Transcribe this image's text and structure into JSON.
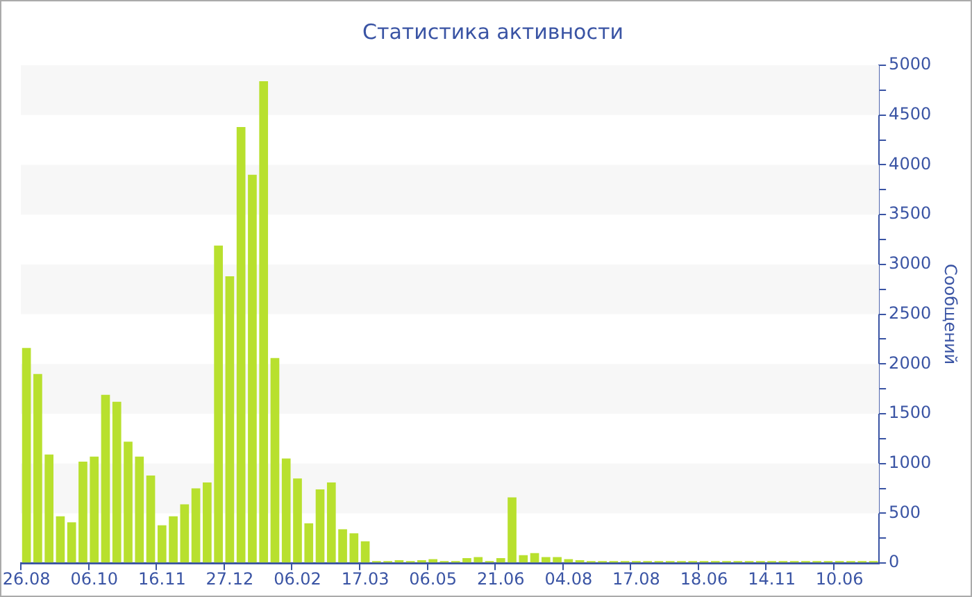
{
  "chart_data": {
    "type": "bar",
    "title": "Статистика активности",
    "ylabel": "Сообщений",
    "categories": [
      "26.08",
      null,
      null,
      null,
      null,
      null,
      "06.10",
      null,
      null,
      null,
      null,
      null,
      "16.11",
      null,
      null,
      null,
      null,
      null,
      "27.12",
      null,
      null,
      null,
      null,
      null,
      "06.02",
      null,
      null,
      null,
      null,
      null,
      "17.03",
      null,
      null,
      null,
      null,
      null,
      "06.05",
      null,
      null,
      null,
      null,
      null,
      "21.06",
      null,
      null,
      null,
      null,
      null,
      "04.08",
      null,
      null,
      null,
      null,
      null,
      "17.08",
      null,
      null,
      null,
      null,
      null,
      "18.06",
      null,
      null,
      null,
      null,
      null,
      "14.11",
      null,
      null,
      null,
      null,
      null,
      "10.06",
      null,
      null,
      null
    ],
    "series": [
      {
        "color": "#b8e02e",
        "values": [
          2160,
          1900,
          1090,
          470,
          410,
          1020,
          1070,
          1690,
          1620,
          1220,
          1070,
          880,
          380,
          470,
          590,
          750,
          810,
          3190,
          2880,
          4380,
          3900,
          4840,
          2060,
          1050,
          850,
          400,
          740,
          810,
          340,
          300,
          220,
          20,
          20,
          30,
          20,
          30,
          40,
          20,
          20,
          50,
          60,
          20,
          50,
          660,
          80,
          100,
          60,
          60,
          40,
          30,
          20,
          20,
          20,
          20,
          20,
          20,
          20,
          20,
          20,
          20,
          20,
          20,
          20,
          20,
          20,
          20,
          20,
          20,
          20,
          20,
          20,
          20,
          20,
          20,
          20,
          20
        ]
      }
    ],
    "ylim": [
      0,
      5000
    ],
    "yticks": [
      0,
      {
        "value": 250,
        "label": null
      },
      500,
      {
        "value": 750,
        "label": null
      },
      1000,
      {
        "value": 1250,
        "label": null
      },
      1500,
      {
        "value": 1750,
        "label": null
      },
      2000,
      {
        "value": 2250,
        "label": null
      },
      2500,
      {
        "value": 2750,
        "label": null
      },
      3000,
      {
        "value": 3250,
        "label": null
      },
      3500,
      {
        "value": 3750,
        "label": null
      },
      4000,
      {
        "value": 4250,
        "label": null
      },
      4500,
      {
        "value": 4750,
        "label": null
      },
      5000
    ],
    "bands": [
      {
        "axis": "y",
        "from": 500,
        "to": 1000,
        "color": "#f7f7f7"
      },
      {
        "axis": "y",
        "from": 1500,
        "to": 2000,
        "color": "#f7f7f7"
      },
      {
        "axis": "y",
        "from": 2500,
        "to": 3000,
        "color": "#f7f7f7"
      },
      {
        "axis": "y",
        "from": 3500,
        "to": 4000,
        "color": "#f7f7f7"
      },
      {
        "axis": "y",
        "from": 4500,
        "to": 5000,
        "color": "#f7f7f7"
      }
    ]
  }
}
